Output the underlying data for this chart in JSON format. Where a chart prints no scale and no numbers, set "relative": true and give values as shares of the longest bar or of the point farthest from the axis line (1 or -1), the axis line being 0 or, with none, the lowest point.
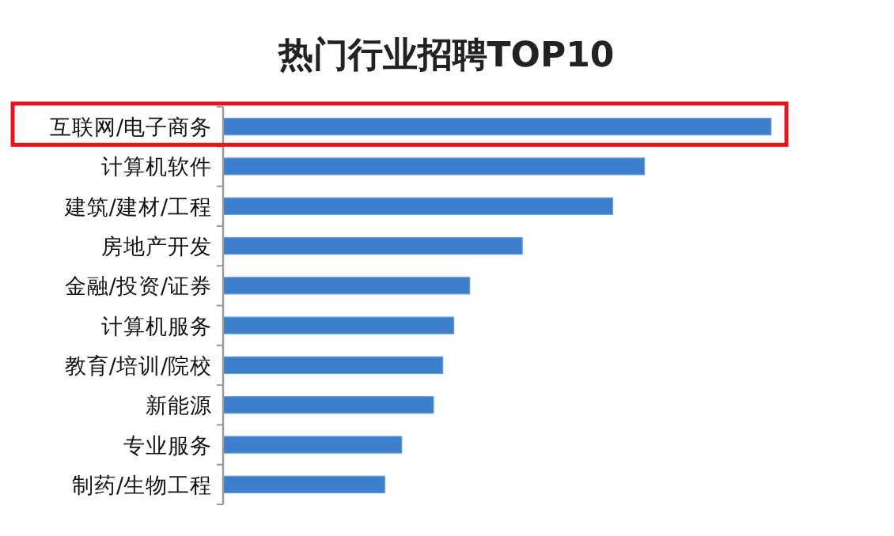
{
  "chart_data": {
    "type": "bar",
    "title": "热门行业招聘TOP10",
    "orientation": "horizontal",
    "relative": true,
    "color": "#3d7fcc",
    "categories": [
      "互联网/电子商务",
      "计算机软件",
      "建筑/建材/工程",
      "房地产开发",
      "金融/投资/证券",
      "计算机服务",
      "教育/培训/院校",
      "新能源",
      "专业服务",
      "制药/生物工程"
    ],
    "values": [
      1,
      0.769,
      0.711,
      0.546,
      0.45,
      0.421,
      0.401,
      0.384,
      0.326,
      0.295
    ]
  }
}
